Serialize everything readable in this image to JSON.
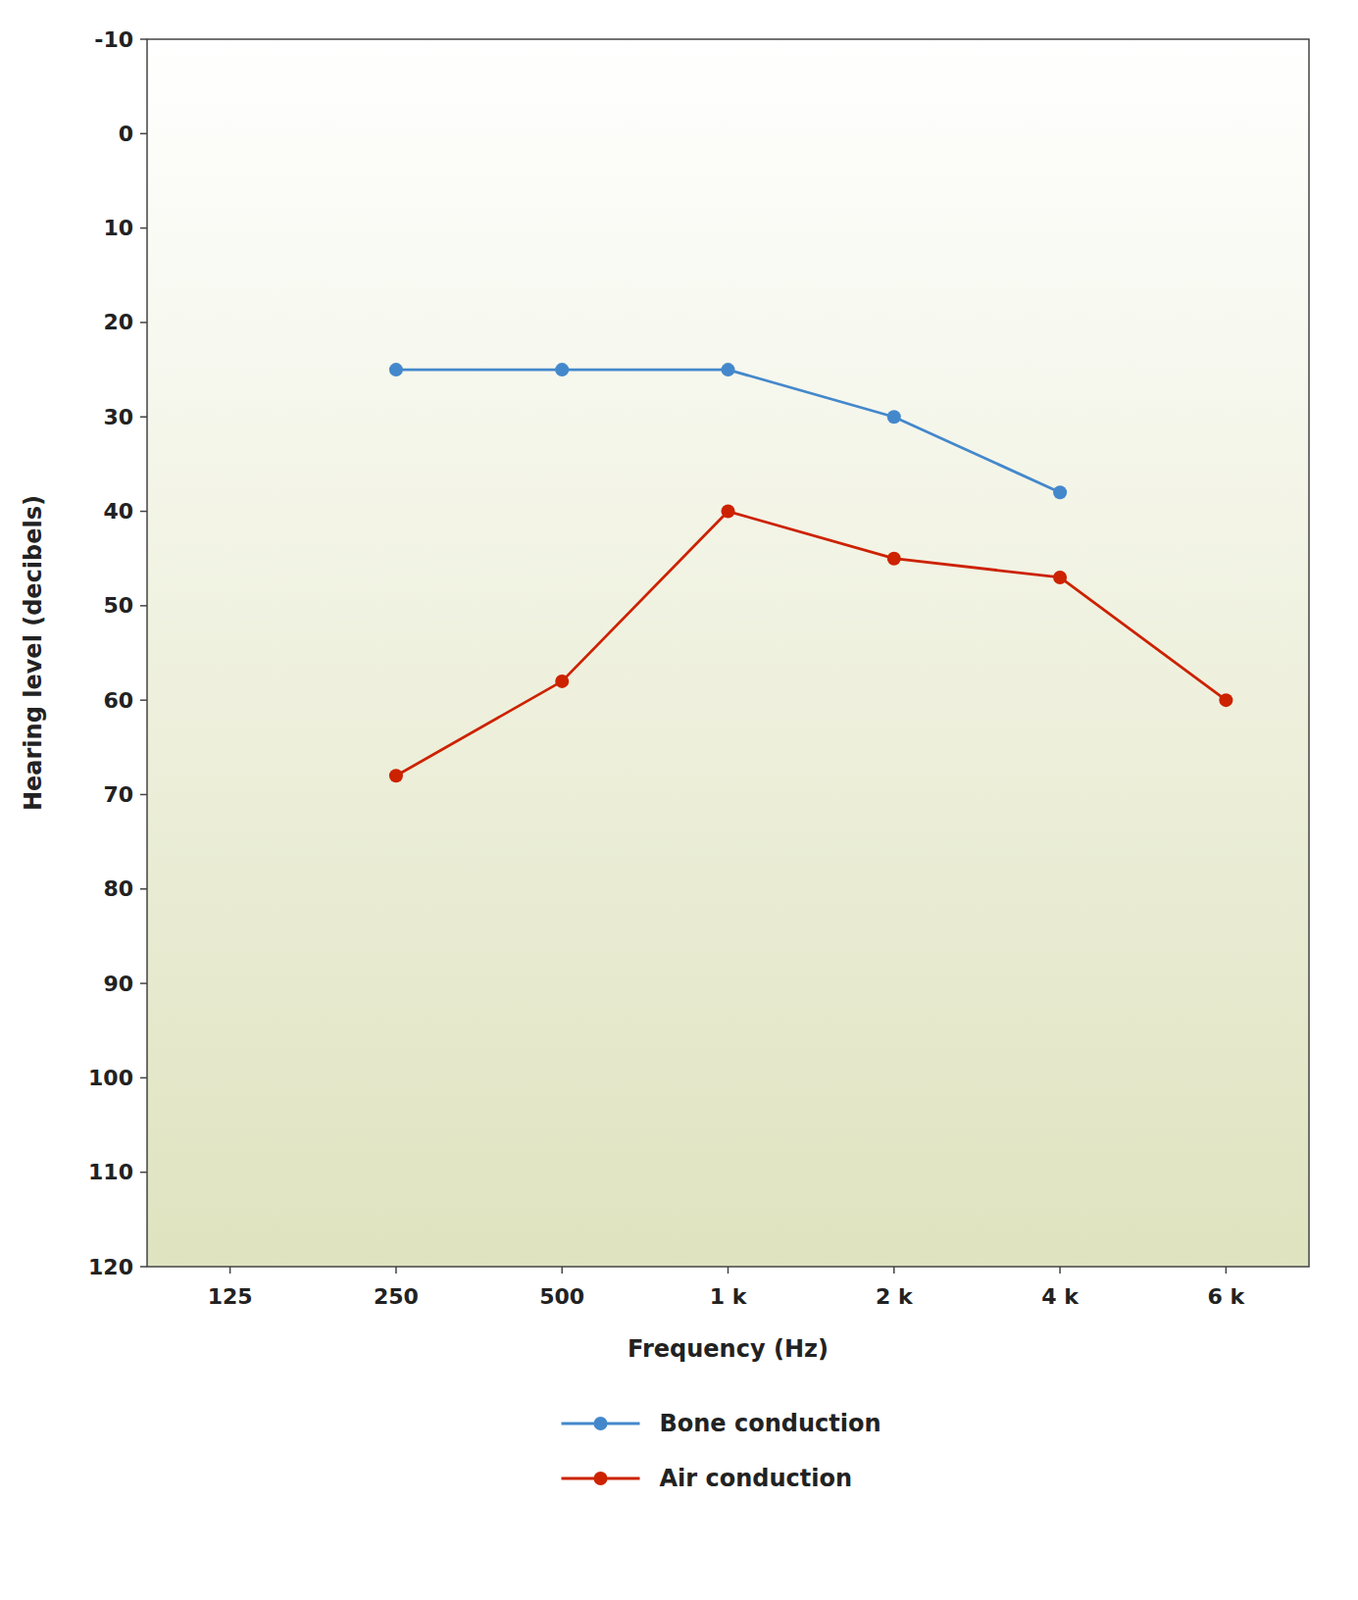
{
  "chart_data": {
    "type": "line",
    "xlabel": "Frequency (Hz)",
    "ylabel": "Hearing level (decibels)",
    "categories": [
      "125",
      "250",
      "500",
      "1 k",
      "2 k",
      "4 k",
      "6 k"
    ],
    "series": [
      {
        "name": "Bone conduction",
        "color": "#4488CC",
        "marker": "circle",
        "line_style": "solid",
        "values": [
          null,
          25,
          25,
          25,
          30,
          38,
          null
        ]
      },
      {
        "name": "Air conduction",
        "color": "#CC2200",
        "marker": "circle",
        "line_style": "solid",
        "values": [
          null,
          68,
          58,
          40,
          45,
          47,
          60
        ]
      }
    ],
    "ylim": [
      120,
      -10
    ],
    "yticks": [
      -10,
      0,
      10,
      20,
      30,
      40,
      50,
      60,
      70,
      80,
      90,
      100,
      110,
      120
    ],
    "grid": false,
    "legend": "bottom"
  }
}
